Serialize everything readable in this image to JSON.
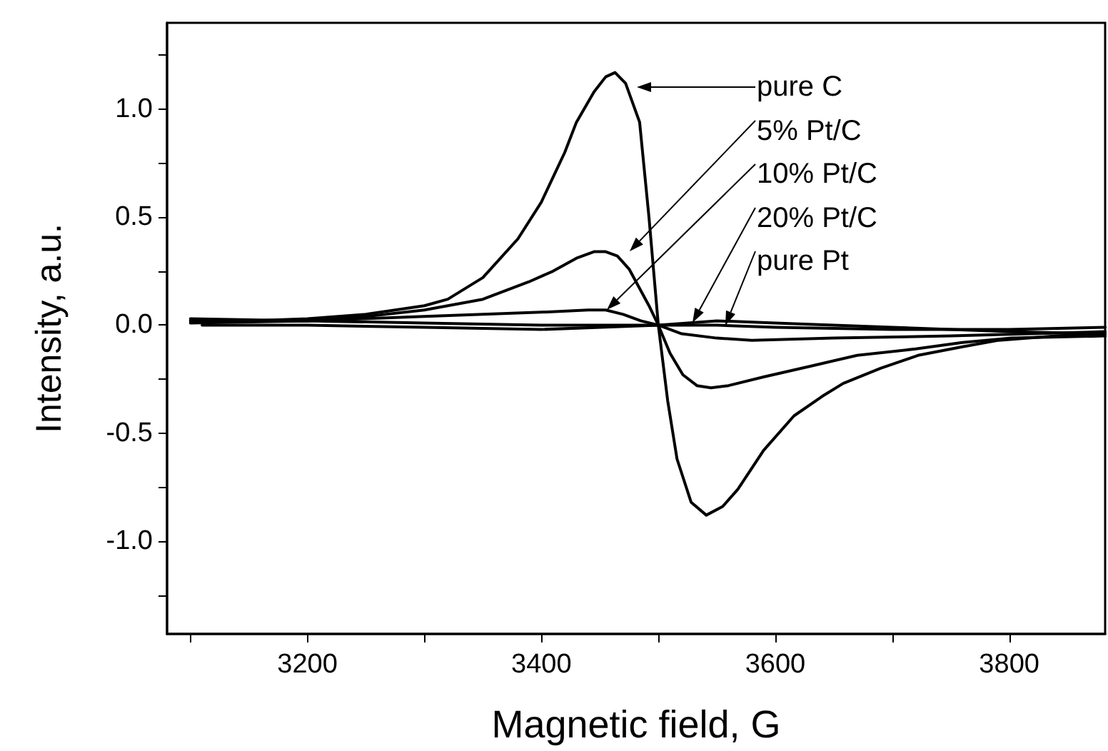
{
  "chart_data": {
    "type": "line",
    "xlabel": "Magnetic field, G",
    "ylabel": "Intensity, a.u.",
    "xlim": [
      3080,
      3882
    ],
    "ylim": [
      -1.43,
      1.4
    ],
    "xticks": [
      {
        "value": 3100,
        "label": null
      },
      3200,
      {
        "value": 3300,
        "label": null
      },
      3400,
      {
        "value": 3500,
        "label": null
      },
      3600,
      {
        "value": 3700,
        "label": null
      },
      3800
    ],
    "yticks": [
      {
        "value": -1.25,
        "label": null
      },
      {
        "value": -1.0,
        "label": "-1.0"
      },
      {
        "value": -0.75,
        "label": null
      },
      -0.5,
      {
        "value": -0.25,
        "label": null
      },
      {
        "value": 0,
        "label": "0.0"
      },
      {
        "value": 0.25,
        "label": null
      },
      0.5,
      {
        "value": 0.75,
        "label": null
      },
      {
        "value": 1.0,
        "label": "1.0"
      },
      {
        "value": 1.25,
        "label": null
      }
    ],
    "grid": false,
    "marker": "none",
    "line_style": "solid",
    "series": [
      {
        "color": "#000000",
        "x": [
          3100,
          3150,
          3200,
          3250,
          3300,
          3320,
          3350,
          3380,
          3400,
          3420,
          3430,
          3445,
          3455,
          3463,
          3472,
          3484,
          3492,
          3500,
          3508,
          3516,
          3528,
          3541,
          3555,
          3568,
          3590,
          3616,
          3640,
          3658,
          3690,
          3722,
          3760,
          3791,
          3840,
          3882
        ],
        "values": [
          0.02,
          0.02,
          0.03,
          0.05,
          0.09,
          0.12,
          0.22,
          0.4,
          0.57,
          0.8,
          0.94,
          1.08,
          1.15,
          1.17,
          1.12,
          0.94,
          0.5,
          0.0,
          -0.35,
          -0.62,
          -0.82,
          -0.88,
          -0.84,
          -0.76,
          -0.58,
          -0.42,
          -0.33,
          -0.27,
          -0.2,
          -0.14,
          -0.1,
          -0.07,
          -0.05,
          -0.04
        ]
      },
      {
        "color": "#000000",
        "x": [
          3100,
          3200,
          3250,
          3300,
          3350,
          3389,
          3410,
          3430,
          3445,
          3455,
          3465,
          3475,
          3484,
          3492,
          3500,
          3510,
          3521,
          3533,
          3545,
          3560,
          3590,
          3630,
          3670,
          3720,
          3760,
          3802,
          3882
        ],
        "values": [
          0.03,
          0.02,
          0.04,
          0.07,
          0.12,
          0.2,
          0.25,
          0.31,
          0.34,
          0.34,
          0.32,
          0.26,
          0.17,
          0.09,
          0.0,
          -0.13,
          -0.23,
          -0.28,
          -0.29,
          -0.28,
          -0.24,
          -0.19,
          -0.14,
          -0.11,
          -0.08,
          -0.06,
          -0.05
        ]
      },
      {
        "color": "#000000",
        "x": [
          3100,
          3200,
          3300,
          3400,
          3440,
          3455,
          3470,
          3485,
          3500,
          3520,
          3550,
          3580,
          3650,
          3750,
          3882
        ],
        "values": [
          0.01,
          0.02,
          0.04,
          0.06,
          0.07,
          0.07,
          0.05,
          0.02,
          0.0,
          -0.04,
          -0.06,
          -0.07,
          -0.06,
          -0.05,
          -0.03
        ]
      },
      {
        "color": "#000000",
        "x": [
          3100,
          3200,
          3300,
          3400,
          3500,
          3550,
          3600,
          3700,
          3800,
          3882
        ],
        "values": [
          0.02,
          0.02,
          0.01,
          0.0,
          0.0,
          0.0,
          -0.01,
          -0.02,
          -0.02,
          -0.01
        ]
      },
      {
        "color": "#000000",
        "x": [
          3110,
          3200,
          3300,
          3400,
          3500,
          3550,
          3600,
          3700,
          3800,
          3875
        ],
        "values": [
          0.0,
          0.0,
          -0.01,
          -0.02,
          0.0,
          0.02,
          0.01,
          -0.01,
          -0.03,
          -0.04
        ]
      }
    ],
    "annotations": [
      "pure C",
      "5% Pt/C",
      "10% Pt/C",
      "20% Pt/C",
      "pure Pt"
    ]
  }
}
